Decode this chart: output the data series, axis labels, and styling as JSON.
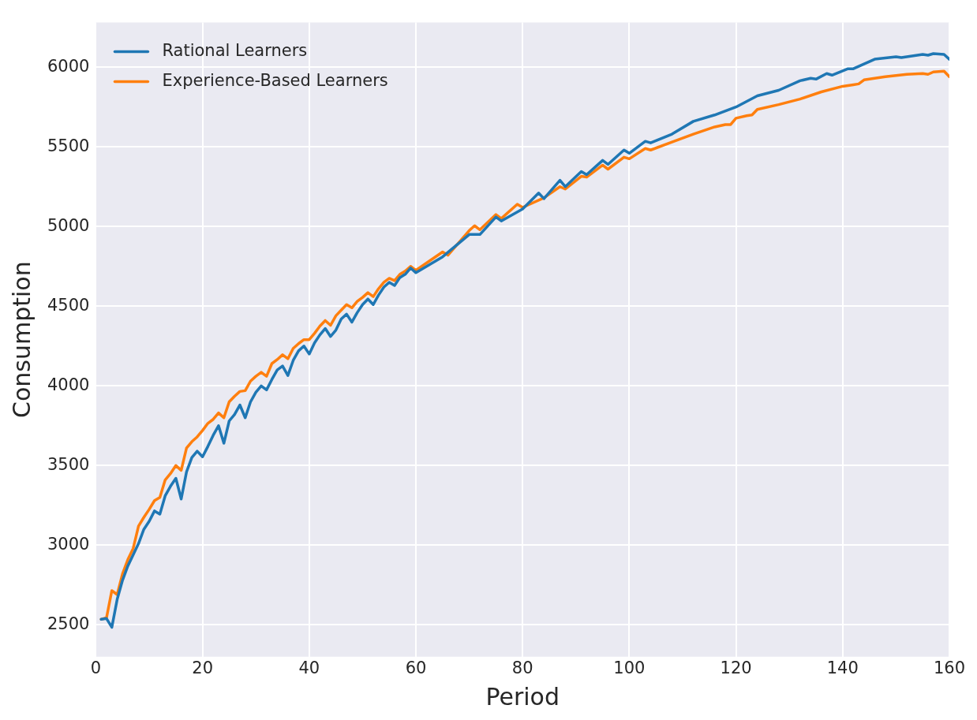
{
  "chart_data": {
    "type": "line",
    "xlabel": "Period",
    "ylabel": "Consumption",
    "xlim": [
      0,
      160
    ],
    "ylim": [
      2300,
      6280
    ],
    "xticks": [
      0,
      20,
      40,
      60,
      80,
      100,
      120,
      140,
      160
    ],
    "yticks": [
      2500,
      3000,
      3500,
      4000,
      4500,
      5000,
      5500,
      6000
    ],
    "grid": true,
    "legend": "top left",
    "line_style": "solid",
    "marker": "none",
    "series": [
      {
        "name": "Rational Learners",
        "color": "#1f77b4",
        "x": [
          1,
          2,
          3,
          4,
          5,
          6,
          7,
          8,
          9,
          10,
          11,
          12,
          13,
          14,
          15,
          16,
          17,
          18,
          19,
          20,
          21,
          22,
          23,
          24,
          25,
          26,
          27,
          28,
          29,
          30,
          31,
          32,
          33,
          34,
          35,
          36,
          37,
          38,
          39,
          40,
          41,
          42,
          43,
          44,
          45,
          46,
          47,
          48,
          49,
          50,
          51,
          52,
          53,
          54,
          55,
          56,
          57,
          58,
          59,
          60,
          65,
          70,
          72,
          75,
          76,
          80,
          83,
          84,
          87,
          88,
          91,
          92,
          95,
          96,
          99,
          100,
          103,
          104,
          108,
          112,
          116,
          120,
          124,
          128,
          132,
          134,
          135,
          137,
          138,
          141,
          142,
          146,
          150,
          151,
          153,
          155,
          156,
          157,
          159,
          160
        ],
        "values": [
          2535,
          2540,
          2485,
          2660,
          2780,
          2870,
          2940,
          3010,
          3100,
          3150,
          3215,
          3195,
          3310,
          3370,
          3420,
          3290,
          3460,
          3550,
          3590,
          3555,
          3620,
          3690,
          3750,
          3640,
          3780,
          3820,
          3880,
          3800,
          3900,
          3960,
          4000,
          3975,
          4040,
          4100,
          4125,
          4065,
          4160,
          4220,
          4250,
          4200,
          4270,
          4320,
          4360,
          4310,
          4350,
          4420,
          4450,
          4400,
          4460,
          4510,
          4545,
          4510,
          4570,
          4620,
          4650,
          4630,
          4680,
          4700,
          4740,
          4710,
          4810,
          4950,
          4950,
          5060,
          5035,
          5110,
          5210,
          5175,
          5290,
          5250,
          5345,
          5325,
          5415,
          5390,
          5480,
          5460,
          5535,
          5525,
          5580,
          5660,
          5700,
          5750,
          5820,
          5855,
          5915,
          5930,
          5925,
          5960,
          5950,
          5990,
          5990,
          6050,
          6065,
          6060,
          6070,
          6080,
          6075,
          6085,
          6080,
          6050
        ]
      },
      {
        "name": "Experience-Based Learners",
        "color": "#ff7f0e",
        "x": [
          1,
          2,
          3,
          4,
          5,
          6,
          7,
          8,
          9,
          10,
          11,
          12,
          13,
          14,
          15,
          16,
          17,
          18,
          19,
          20,
          21,
          22,
          23,
          24,
          25,
          26,
          27,
          28,
          29,
          30,
          31,
          32,
          33,
          34,
          35,
          36,
          37,
          38,
          39,
          40,
          41,
          42,
          43,
          44,
          45,
          46,
          47,
          48,
          49,
          50,
          51,
          52,
          53,
          54,
          55,
          56,
          57,
          58,
          59,
          60,
          65,
          66,
          70,
          71,
          72,
          75,
          76,
          79,
          80,
          84,
          87,
          88,
          91,
          92,
          95,
          96,
          99,
          100,
          103,
          104,
          108,
          112,
          116,
          118,
          119,
          120,
          122,
          123,
          124,
          128,
          132,
          136,
          140,
          142,
          143,
          144,
          148,
          152,
          155,
          156,
          157,
          159,
          160
        ],
        "values": [
          2535,
          2545,
          2715,
          2690,
          2820,
          2910,
          2980,
          3120,
          3175,
          3225,
          3280,
          3300,
          3410,
          3450,
          3500,
          3470,
          3610,
          3650,
          3680,
          3720,
          3765,
          3790,
          3830,
          3800,
          3900,
          3935,
          3965,
          3970,
          4030,
          4060,
          4085,
          4060,
          4140,
          4165,
          4195,
          4170,
          4235,
          4265,
          4290,
          4290,
          4330,
          4375,
          4410,
          4380,
          4440,
          4475,
          4510,
          4490,
          4530,
          4555,
          4585,
          4560,
          4610,
          4650,
          4675,
          4660,
          4700,
          4720,
          4750,
          4725,
          4840,
          4820,
          4975,
          5005,
          4980,
          5075,
          5050,
          5140,
          5120,
          5180,
          5250,
          5235,
          5315,
          5310,
          5385,
          5360,
          5435,
          5425,
          5490,
          5480,
          5530,
          5580,
          5625,
          5640,
          5640,
          5680,
          5695,
          5700,
          5735,
          5765,
          5800,
          5845,
          5880,
          5890,
          5895,
          5920,
          5940,
          5955,
          5960,
          5955,
          5970,
          5975,
          5940
        ]
      }
    ]
  }
}
